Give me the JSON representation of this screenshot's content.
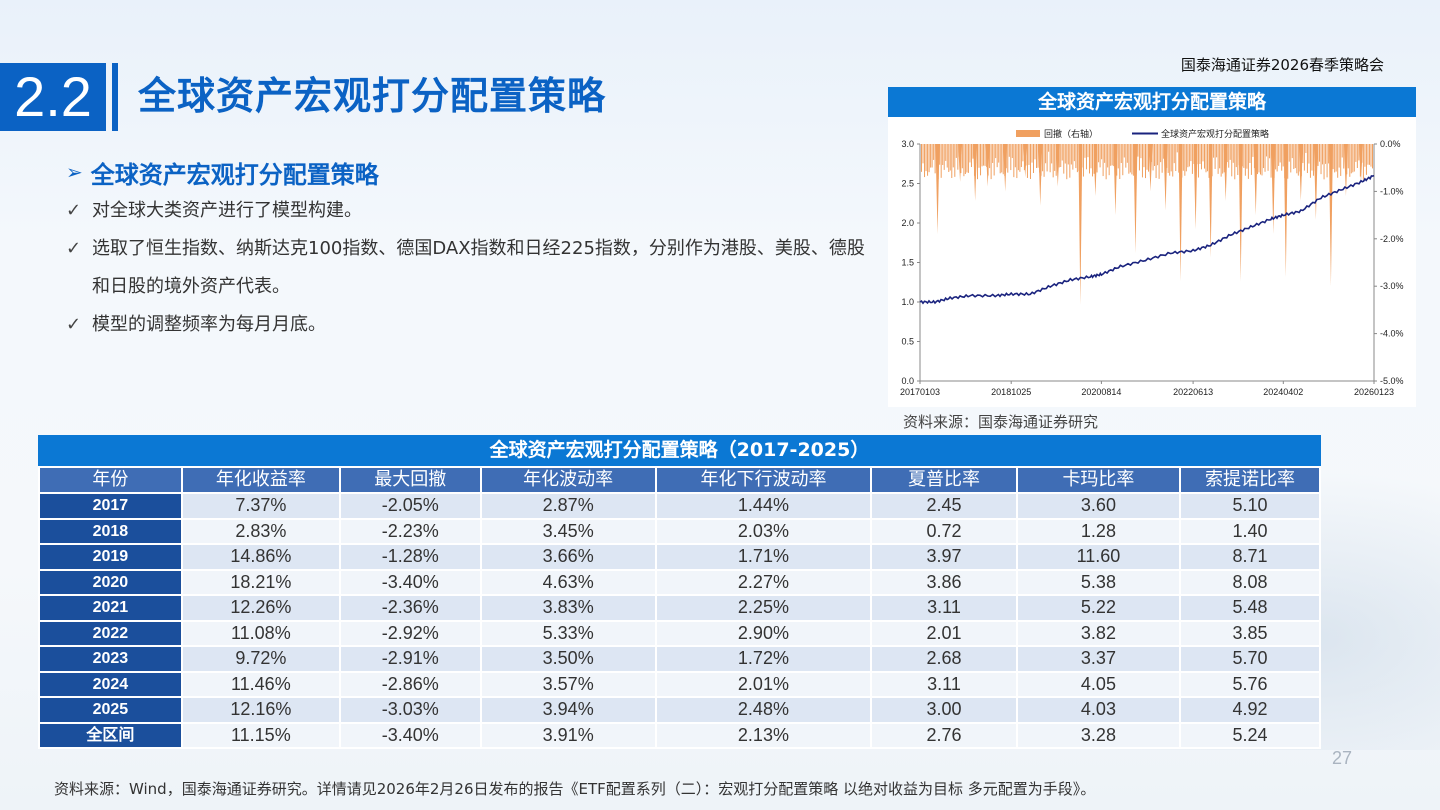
{
  "brand": "国泰海通证券2026春季策略会",
  "section_number": "2.2",
  "page_title": "全球资产宏观打分配置策略",
  "bullets": {
    "heading": "全球资产宏观打分配置策略",
    "items": [
      "对全球大类资产进行了模型构建。",
      "选取了恒生指数、纳斯达克100指数、德国DAX指数和日经225指数，分别作为港股、美股、德股和日股的境外资产代表。",
      "模型的调整频率为每月月底。"
    ]
  },
  "chart_panel": {
    "header": "全球资产宏观打分配置策略",
    "source": "资料来源：国泰海通证券研究"
  },
  "chart_data": {
    "type": "line",
    "legend": [
      "回撤（右轴）",
      "全球资产宏观打分配置策略"
    ],
    "legend_position": "top",
    "colors": {
      "drawdown": "#f0a060",
      "nav": "#1a237e"
    },
    "x_ticks": [
      "20170103",
      "20181025",
      "20200814",
      "20220613",
      "20240402",
      "20260123"
    ],
    "y_left_ticks": [
      "0.0",
      "0.5",
      "1.0",
      "1.5",
      "2.0",
      "2.5",
      "3.0"
    ],
    "y_right_ticks": [
      "0.0%",
      "-1.0%",
      "-2.0%",
      "-3.0%",
      "-4.0%",
      "-5.0%"
    ],
    "ylim_left": [
      0,
      3
    ],
    "ylim_right": [
      -5,
      0
    ],
    "nav_series": [
      {
        "x": 2017.0,
        "y": 1.0
      },
      {
        "x": 2017.3,
        "y": 1.0
      },
      {
        "x": 2017.6,
        "y": 1.05
      },
      {
        "x": 2018.0,
        "y": 1.08
      },
      {
        "x": 2018.5,
        "y": 1.08
      },
      {
        "x": 2018.82,
        "y": 1.1
      },
      {
        "x": 2019.2,
        "y": 1.1
      },
      {
        "x": 2019.6,
        "y": 1.2
      },
      {
        "x": 2020.0,
        "y": 1.28
      },
      {
        "x": 2020.4,
        "y": 1.32
      },
      {
        "x": 2020.62,
        "y": 1.35
      },
      {
        "x": 2021.0,
        "y": 1.45
      },
      {
        "x": 2021.5,
        "y": 1.53
      },
      {
        "x": 2022.0,
        "y": 1.62
      },
      {
        "x": 2022.45,
        "y": 1.65
      },
      {
        "x": 2022.8,
        "y": 1.72
      },
      {
        "x": 2023.2,
        "y": 1.85
      },
      {
        "x": 2023.6,
        "y": 1.95
      },
      {
        "x": 2024.0,
        "y": 2.05
      },
      {
        "x": 2024.25,
        "y": 2.1
      },
      {
        "x": 2024.6,
        "y": 2.15
      },
      {
        "x": 2025.0,
        "y": 2.32
      },
      {
        "x": 2025.4,
        "y": 2.42
      },
      {
        "x": 2025.8,
        "y": 2.52
      },
      {
        "x": 2026.06,
        "y": 2.6
      }
    ],
    "drawdown_spikes": [
      {
        "x": 2017.35,
        "y": -1.9
      },
      {
        "x": 2017.8,
        "y": -0.8
      },
      {
        "x": 2018.1,
        "y": -1.2
      },
      {
        "x": 2018.35,
        "y": -0.9
      },
      {
        "x": 2018.7,
        "y": -1.0
      },
      {
        "x": 2019.1,
        "y": -0.7
      },
      {
        "x": 2019.4,
        "y": -1.3
      },
      {
        "x": 2019.75,
        "y": -0.9
      },
      {
        "x": 2020.2,
        "y": -3.4
      },
      {
        "x": 2020.5,
        "y": -1.1
      },
      {
        "x": 2020.9,
        "y": -1.5
      },
      {
        "x": 2021.3,
        "y": -2.3
      },
      {
        "x": 2021.6,
        "y": -1.0
      },
      {
        "x": 2021.9,
        "y": -1.4
      },
      {
        "x": 2022.2,
        "y": -2.9
      },
      {
        "x": 2022.5,
        "y": -1.8
      },
      {
        "x": 2022.8,
        "y": -2.4
      },
      {
        "x": 2023.1,
        "y": -1.2
      },
      {
        "x": 2023.4,
        "y": -2.9
      },
      {
        "x": 2023.7,
        "y": -1.5
      },
      {
        "x": 2024.05,
        "y": -1.9
      },
      {
        "x": 2024.3,
        "y": -2.8
      },
      {
        "x": 2024.6,
        "y": -1.2
      },
      {
        "x": 2024.9,
        "y": -1.6
      },
      {
        "x": 2025.2,
        "y": -3.0
      },
      {
        "x": 2025.5,
        "y": -1.1
      },
      {
        "x": 2025.8,
        "y": -0.8
      }
    ]
  },
  "table": {
    "title": "全球资产宏观打分配置策略（2017-2025）",
    "columns": [
      "年份",
      "年化收益率",
      "最大回撤",
      "年化波动率",
      "年化下行波动率",
      "夏普比率",
      "卡玛比率",
      "索提诺比率"
    ],
    "rows": [
      [
        "2017",
        "7.37%",
        "-2.05%",
        "2.87%",
        "1.44%",
        "2.45",
        "3.60",
        "5.10"
      ],
      [
        "2018",
        "2.83%",
        "-2.23%",
        "3.45%",
        "2.03%",
        "0.72",
        "1.28",
        "1.40"
      ],
      [
        "2019",
        "14.86%",
        "-1.28%",
        "3.66%",
        "1.71%",
        "3.97",
        "11.60",
        "8.71"
      ],
      [
        "2020",
        "18.21%",
        "-3.40%",
        "4.63%",
        "2.27%",
        "3.86",
        "5.38",
        "8.08"
      ],
      [
        "2021",
        "12.26%",
        "-2.36%",
        "3.83%",
        "2.25%",
        "3.11",
        "5.22",
        "5.48"
      ],
      [
        "2022",
        "11.08%",
        "-2.92%",
        "5.33%",
        "2.90%",
        "2.01",
        "3.82",
        "3.85"
      ],
      [
        "2023",
        "9.72%",
        "-2.91%",
        "3.50%",
        "1.72%",
        "2.68",
        "3.37",
        "5.70"
      ],
      [
        "2024",
        "11.46%",
        "-2.86%",
        "3.57%",
        "2.01%",
        "3.11",
        "4.05",
        "5.76"
      ],
      [
        "2025",
        "12.16%",
        "-3.03%",
        "3.94%",
        "2.48%",
        "3.00",
        "4.03",
        "4.92"
      ],
      [
        "全区间",
        "11.15%",
        "-3.40%",
        "3.91%",
        "2.13%",
        "2.76",
        "3.28",
        "5.24"
      ]
    ]
  },
  "page_number": "27",
  "footer_source": "资料来源：Wind，国泰海通证券研究。详情请见2026年2月26日发布的报告《ETF配置系列（二）：宏观打分配置策略 以绝对收益为目标 多元配置为手段》。"
}
